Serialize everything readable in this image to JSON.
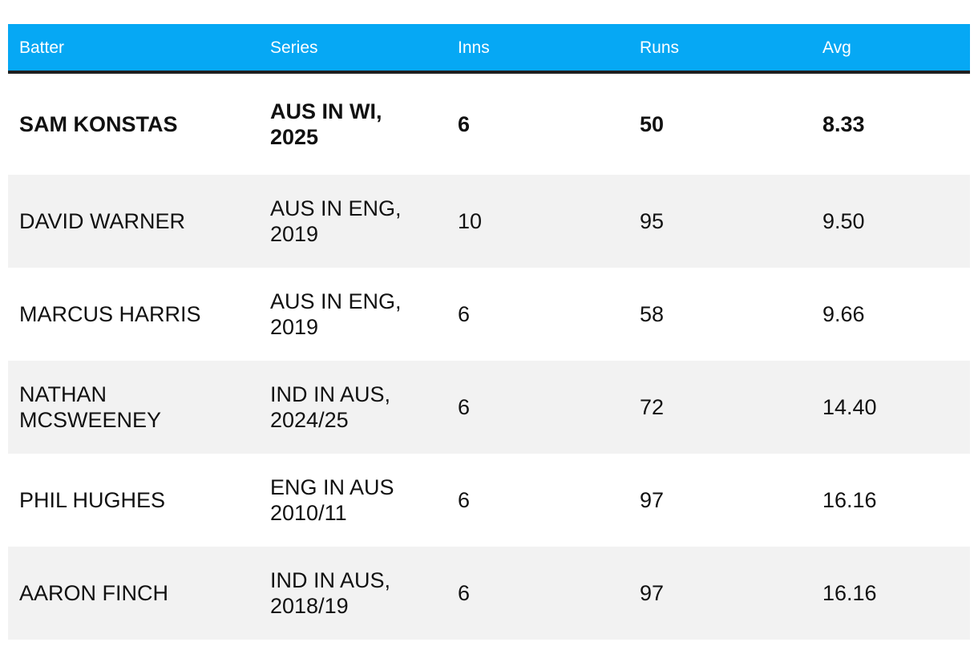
{
  "chart_data": {
    "type": "table",
    "columns": [
      "Batter",
      "Series",
      "Inns",
      "Runs",
      "Avg"
    ],
    "rows": [
      {
        "batter": "SAM KONSTAS",
        "series": "AUS IN WI,\n2025",
        "inns": "6",
        "runs": "50",
        "avg": "8.33"
      },
      {
        "batter": "DAVID WARNER",
        "series": "AUS IN ENG,\n2019",
        "inns": "10",
        "runs": "95",
        "avg": "9.50"
      },
      {
        "batter": "MARCUS HARRIS",
        "series": "AUS IN ENG,\n2019",
        "inns": "6",
        "runs": "58",
        "avg": "9.66"
      },
      {
        "batter": "NATHAN\nMCSWEENEY",
        "series": "IND IN AUS,\n2024/25",
        "inns": "6",
        "runs": "72",
        "avg": "14.40"
      },
      {
        "batter": "PHIL HUGHES",
        "series": "ENG IN AUS\n2010/11",
        "inns": "6",
        "runs": "97",
        "avg": "16.16"
      },
      {
        "batter": "AARON FINCH",
        "series": "IND IN AUS,\n2018/19",
        "inns": "6",
        "runs": "97",
        "avg": "16.16"
      }
    ],
    "highlighted_row": 0,
    "colors": {
      "header_bg": "#06a8f4",
      "header_text": "#ffffff",
      "header_rule": "#1f1f1f",
      "row_shaded": "#f2f2f2",
      "row_plain": "#ffffff",
      "text": "#111111"
    }
  }
}
